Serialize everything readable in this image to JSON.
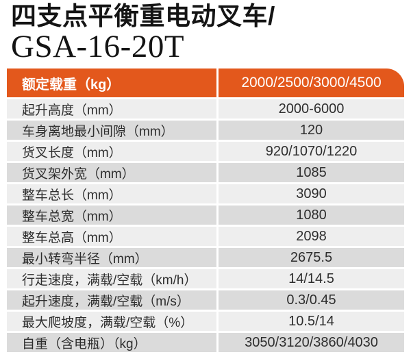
{
  "title": {
    "line1": "四支点平衡重电动叉车/",
    "line2": "GSA-16-20T"
  },
  "colors": {
    "header_bg": "#E3581C",
    "header_text": "#FFFFFF",
    "row_light": "#EEEEEE",
    "row_dark": "#DBDBDB",
    "body_text": "#2E2E2E"
  },
  "table": {
    "header": {
      "label": "额定载重（kg）",
      "value": "2000/2500/3000/4500"
    },
    "rows": [
      {
        "label": "起升高度（mm）",
        "value": "2000-6000"
      },
      {
        "label": "车身离地最小间隙（mm）",
        "value": "120"
      },
      {
        "label": "货叉长度（mm）",
        "value": "920/1070/1220"
      },
      {
        "label": "货叉架外宽（mm）",
        "value": "1085"
      },
      {
        "label": "整车总长（mm）",
        "value": "3090"
      },
      {
        "label": "整车总宽（mm）",
        "value": "1080"
      },
      {
        "label": "整车总高（mm）",
        "value": "2098"
      },
      {
        "label": "最小转弯半径（mm）",
        "value": "2675.5"
      },
      {
        "label": "行走速度，满载/空载（km/h）",
        "value": "14/14.5"
      },
      {
        "label": "起升速度，满载/空载（m/s）",
        "value": "0.3/0.45"
      },
      {
        "label": "最大爬坡度，满载/空载（%）",
        "value": "10.5/14"
      },
      {
        "label": "自重（含电瓶）（kg）",
        "value": "3050/3120/3860/4030"
      }
    ]
  }
}
